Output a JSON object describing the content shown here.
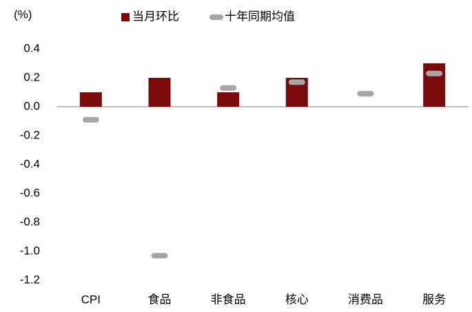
{
  "chart_data": {
    "type": "bar",
    "y_label": "(%)",
    "categories": [
      "CPI",
      "食品",
      "非食品",
      "核心",
      "消费品",
      "服务"
    ],
    "series": [
      {
        "name": "当月环比",
        "color": "#7b0a0a",
        "values": [
          0.1,
          0.2,
          0.1,
          0.2,
          0,
          0.3
        ]
      },
      {
        "name": "十年同期均值",
        "color": "#a6a6a6",
        "marker": "dash",
        "values": [
          -0.09,
          -1.03,
          0.13,
          0.17,
          0.09,
          0.23
        ]
      }
    ],
    "ylim": [
      -1.2,
      0.4
    ],
    "yticks": [
      0.4,
      0.2,
      {
        "value": 0,
        "label": "0.0"
      },
      -0.2,
      -0.4,
      -0.6,
      -0.8,
      {
        "value": -1,
        "label": "-1.0"
      },
      -1.2
    ],
    "legend": "top",
    "grid": false
  }
}
